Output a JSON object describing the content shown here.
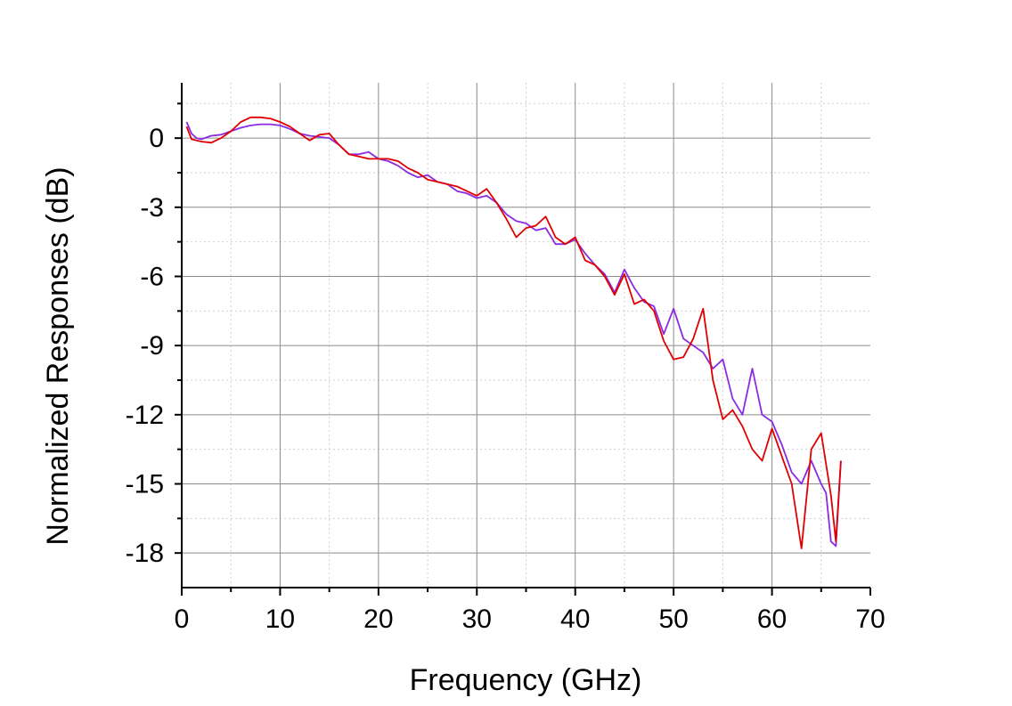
{
  "chart_data": {
    "type": "line",
    "title": "",
    "xlabel": "Frequency (GHz)",
    "ylabel": "Normalized Responses (dB)",
    "xlim": [
      0,
      70
    ],
    "ylim": [
      -19.5,
      2.4
    ],
    "xticks": [
      0,
      10,
      20,
      30,
      40,
      50,
      60,
      70
    ],
    "yticks": [
      0,
      -3,
      -6,
      -9,
      -12,
      -15,
      -18
    ],
    "xtick_labels": [
      "0",
      "10",
      "20",
      "30",
      "40",
      "50",
      "60",
      "70"
    ],
    "ytick_labels": [
      "0",
      "-3",
      "-6",
      "-9",
      "-12",
      "-15",
      "-18"
    ],
    "grid": true,
    "legend": "none",
    "series": [
      {
        "color": "#8a2be2",
        "x": [
          0.5,
          1,
          1.5,
          2,
          3,
          4,
          5,
          6,
          7,
          8,
          9,
          10,
          11,
          12,
          13,
          14,
          15,
          16,
          17,
          18,
          19,
          20,
          21,
          22,
          23,
          24,
          25,
          26,
          27,
          28,
          29,
          30,
          31,
          32,
          33,
          34,
          35,
          36,
          37,
          38,
          39,
          40,
          41,
          42,
          43,
          44,
          45,
          46,
          47,
          48,
          49,
          50,
          51,
          52,
          53,
          54,
          55,
          56,
          57,
          58,
          59,
          60,
          61,
          62,
          63,
          64,
          65,
          65.5,
          66,
          66.5,
          67
        ],
        "y": [
          0.7,
          0.2,
          0.0,
          -0.05,
          0.1,
          0.15,
          0.3,
          0.45,
          0.55,
          0.6,
          0.6,
          0.55,
          0.4,
          0.2,
          0.1,
          0.05,
          0.0,
          -0.3,
          -0.7,
          -0.7,
          -0.6,
          -0.9,
          -1.0,
          -1.2,
          -1.5,
          -1.7,
          -1.6,
          -1.9,
          -2.0,
          -2.3,
          -2.4,
          -2.6,
          -2.5,
          -2.8,
          -3.3,
          -3.6,
          -3.7,
          -4.0,
          -3.9,
          -4.6,
          -4.6,
          -4.4,
          -5.0,
          -5.5,
          -5.9,
          -6.7,
          -5.7,
          -6.5,
          -7.1,
          -7.3,
          -8.5,
          -7.4,
          -8.7,
          -9.0,
          -9.3,
          -10.0,
          -9.6,
          -11.3,
          -12.0,
          -10.0,
          -12.0,
          -12.3,
          -13.3,
          -14.5,
          -15.0,
          -14.0,
          -15.0,
          -15.4,
          -17.5,
          -17.7,
          -14.0
        ]
      },
      {
        "color": "#e00000",
        "x": [
          0.5,
          1,
          2,
          3,
          4,
          5,
          6,
          7,
          8,
          9,
          10,
          11,
          12,
          13,
          14,
          15,
          16,
          17,
          18,
          19,
          20,
          21,
          22,
          23,
          24,
          25,
          26,
          27,
          28,
          29,
          30,
          31,
          32,
          33,
          34,
          35,
          36,
          37,
          38,
          39,
          40,
          41,
          42,
          43,
          44,
          45,
          46,
          47,
          48,
          49,
          50,
          51,
          52,
          53,
          54,
          55,
          56,
          57,
          58,
          59,
          60,
          61,
          62,
          63,
          64,
          65,
          66,
          66.5,
          67
        ],
        "y": [
          0.5,
          -0.05,
          -0.15,
          -0.2,
          0.0,
          0.3,
          0.7,
          0.9,
          0.9,
          0.85,
          0.7,
          0.5,
          0.2,
          -0.1,
          0.15,
          0.2,
          -0.3,
          -0.7,
          -0.8,
          -0.9,
          -0.9,
          -0.9,
          -1.0,
          -1.3,
          -1.5,
          -1.8,
          -1.9,
          -2.0,
          -2.1,
          -2.3,
          -2.5,
          -2.2,
          -2.8,
          -3.5,
          -4.3,
          -3.9,
          -3.8,
          -3.4,
          -4.3,
          -4.6,
          -4.3,
          -5.3,
          -5.5,
          -6.0,
          -6.8,
          -5.9,
          -7.2,
          -7.0,
          -7.5,
          -8.8,
          -9.6,
          -9.5,
          -8.7,
          -7.4,
          -10.5,
          -12.2,
          -11.8,
          -12.5,
          -13.5,
          -14.0,
          -12.6,
          -13.8,
          -15.0,
          -17.8,
          -13.5,
          -12.8,
          -15.5,
          -17.5,
          -14.0
        ]
      }
    ]
  }
}
